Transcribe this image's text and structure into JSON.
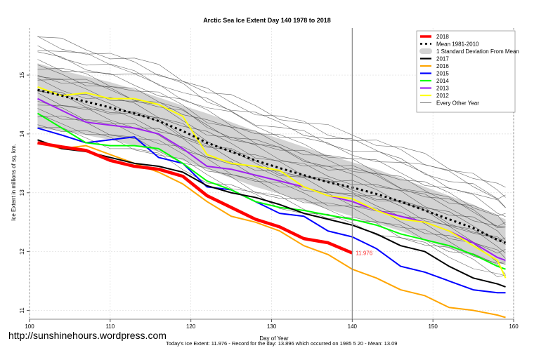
{
  "chart_data": {
    "type": "line",
    "title": "Arctic Sea Ice Extent Day 140 1978 to 2018",
    "xlabel": "Day of Year",
    "ylabel": "Ice Extent in millions of sq. km.",
    "xlim": [
      100,
      160
    ],
    "ylim": [
      10.85,
      15.8
    ],
    "xticks": [
      100,
      110,
      120,
      130,
      140,
      150,
      160
    ],
    "yticks": [
      11,
      12,
      13,
      14,
      15
    ],
    "grid": true,
    "legend_position": "top-right",
    "current_day_marker": 140,
    "current_value_label": "11.976",
    "legend": [
      {
        "label": "2018",
        "color": "#ff0000",
        "style": "thick"
      },
      {
        "label": "Mean 1981-2010",
        "color": "#000000",
        "style": "dashed"
      },
      {
        "label": "1 Standard Deviation From Mean",
        "color": "#d3d3d3",
        "style": "band"
      },
      {
        "label": "2017",
        "color": "#000000",
        "style": "solid"
      },
      {
        "label": "2016",
        "color": "#ffa500",
        "style": "solid"
      },
      {
        "label": "2015",
        "color": "#0000ff",
        "style": "solid"
      },
      {
        "label": "2014",
        "color": "#00ff00",
        "style": "solid"
      },
      {
        "label": "2013",
        "color": "#a020f0",
        "style": "solid"
      },
      {
        "label": "2012",
        "color": "#ffff00",
        "style": "solid"
      },
      {
        "label": "Every Other Year",
        "color": "#555555",
        "style": "thin"
      }
    ],
    "x": [
      101,
      104,
      107,
      110,
      113,
      116,
      119,
      122,
      125,
      128,
      131,
      134,
      137,
      140,
      143,
      146,
      149,
      152,
      155,
      158,
      159
    ],
    "band": {
      "upper": [
        15.2,
        15.08,
        14.98,
        14.88,
        14.76,
        14.62,
        14.48,
        14.35,
        14.2,
        14.05,
        13.92,
        13.78,
        13.64,
        13.52,
        13.4,
        13.25,
        13.1,
        12.95,
        12.8,
        12.6,
        12.55
      ],
      "lower": [
        14.1,
        14.05,
        13.98,
        13.9,
        13.8,
        13.7,
        13.55,
        13.4,
        13.25,
        13.1,
        12.98,
        12.85,
        12.72,
        12.6,
        12.48,
        12.35,
        12.2,
        12.05,
        11.92,
        11.8,
        11.78
      ]
    },
    "series": [
      {
        "name": "Mean 1981-2010",
        "values": [
          14.75,
          14.65,
          14.55,
          14.45,
          14.35,
          14.22,
          14.05,
          13.85,
          13.7,
          13.55,
          13.42,
          13.3,
          13.18,
          13.09,
          12.98,
          12.85,
          12.7,
          12.55,
          12.4,
          12.2,
          12.15
        ]
      },
      {
        "name": "2012",
        "values": [
          14.8,
          14.65,
          14.7,
          14.6,
          14.6,
          14.5,
          14.3,
          13.65,
          13.5,
          13.45,
          13.38,
          13.1,
          12.95,
          12.9,
          12.7,
          12.55,
          12.5,
          12.35,
          12.1,
          11.85,
          11.55
        ]
      },
      {
        "name": "2013",
        "values": [
          14.6,
          14.4,
          14.2,
          14.15,
          14.1,
          14.0,
          13.75,
          13.45,
          13.4,
          13.3,
          13.2,
          13.1,
          12.95,
          12.85,
          12.7,
          12.6,
          12.5,
          12.35,
          12.15,
          11.9,
          11.85
        ]
      },
      {
        "name": "2014",
        "values": [
          14.35,
          14.1,
          13.85,
          13.8,
          13.8,
          13.75,
          13.5,
          13.2,
          13.05,
          12.85,
          12.75,
          12.7,
          12.62,
          12.55,
          12.45,
          12.3,
          12.2,
          12.1,
          11.95,
          11.75,
          11.7
        ]
      },
      {
        "name": "2015",
        "values": [
          14.1,
          13.98,
          13.85,
          13.9,
          13.95,
          13.6,
          13.5,
          13.1,
          13.05,
          12.85,
          12.65,
          12.6,
          12.35,
          12.25,
          12.05,
          11.75,
          11.65,
          11.5,
          11.35,
          11.3,
          11.3
        ]
      },
      {
        "name": "2016",
        "values": [
          13.85,
          13.75,
          13.8,
          13.65,
          13.5,
          13.35,
          13.15,
          12.85,
          12.6,
          12.5,
          12.35,
          12.1,
          11.95,
          11.7,
          11.55,
          11.35,
          11.25,
          11.05,
          11.0,
          10.92,
          10.88
        ]
      },
      {
        "name": "2017",
        "values": [
          13.9,
          13.75,
          13.7,
          13.6,
          13.5,
          13.45,
          13.35,
          13.12,
          13.0,
          12.92,
          12.8,
          12.65,
          12.55,
          12.45,
          12.3,
          12.1,
          12.0,
          11.75,
          11.55,
          11.45,
          11.4
        ]
      },
      {
        "name": "2018",
        "values": [
          13.85,
          13.78,
          13.72,
          13.55,
          13.45,
          13.4,
          13.28,
          12.95,
          12.75,
          12.55,
          12.42,
          12.22,
          12.15,
          11.976,
          null,
          null,
          null,
          null,
          null,
          null,
          null
        ]
      }
    ]
  },
  "footer": {
    "website": "http://sunshinehours.wordpress.com",
    "stats": "Today's Ice Extent: 11.976  - Record for the day: 13.896 which occurred on 1985 5 20  - Mean: 13.09"
  }
}
